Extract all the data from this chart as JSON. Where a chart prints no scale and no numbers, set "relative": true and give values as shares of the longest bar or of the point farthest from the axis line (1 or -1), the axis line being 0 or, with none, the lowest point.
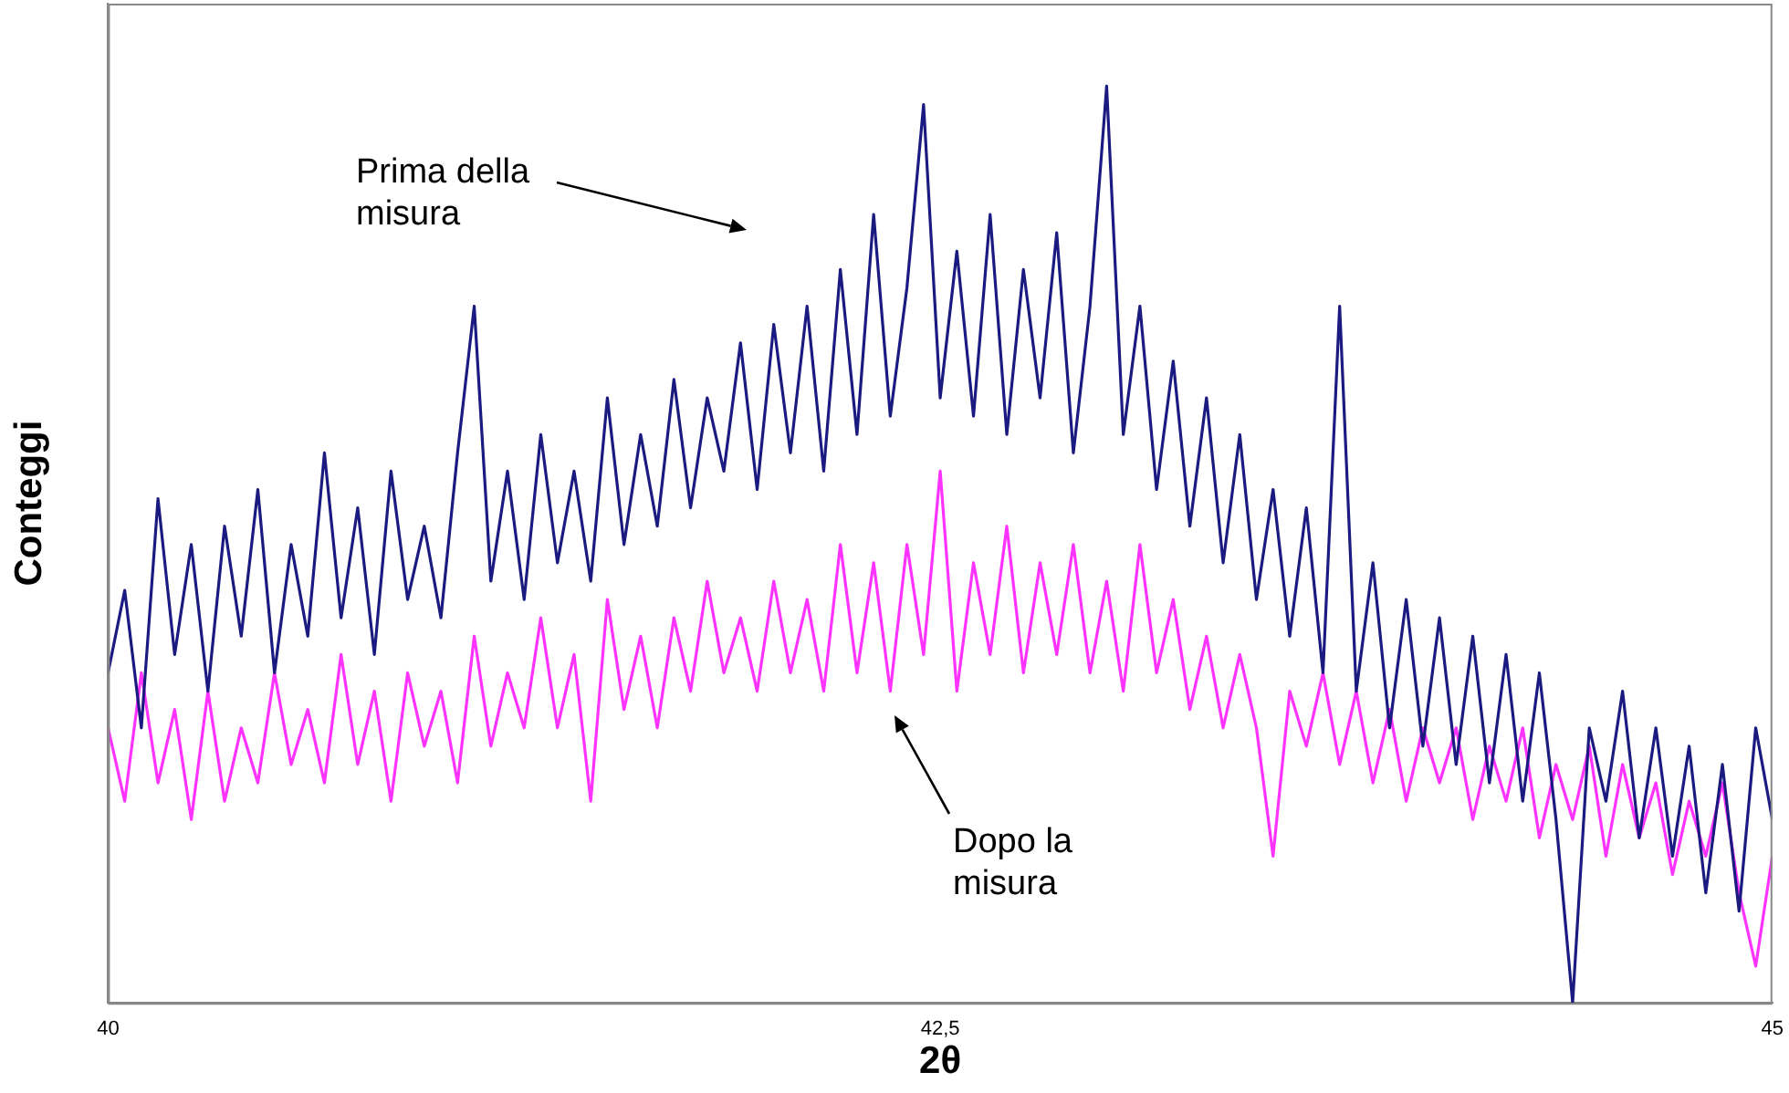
{
  "chart_data": {
    "type": "line",
    "relative": true,
    "xlabel": "2θ",
    "ylabel": "Conteggi",
    "xlim": [
      40,
      45
    ],
    "xticks": [
      40,
      {
        "value": 42.5,
        "label": "42,5"
      },
      45
    ],
    "grid": false,
    "legend": false,
    "marker": "none",
    "line_style": "solid",
    "annotations": [
      "Prima della misura",
      "Dopo la misura"
    ],
    "series": [
      {
        "color": "#1a1a80",
        "x": [
          40,
          40.05,
          40.1,
          40.15,
          40.2,
          40.25,
          40.3,
          40.35,
          40.4,
          40.45,
          40.5,
          40.55,
          40.6,
          40.65,
          40.7,
          40.75,
          40.8,
          40.85,
          40.9,
          40.95,
          41,
          41.05,
          41.1,
          41.15,
          41.2,
          41.25,
          41.3,
          41.35,
          41.4,
          41.45,
          41.5,
          41.55,
          41.6,
          41.65,
          41.7,
          41.75,
          41.8,
          41.85,
          41.9,
          41.95,
          42,
          42.05,
          42.1,
          42.15,
          42.2,
          42.25,
          42.3,
          42.35,
          42.4,
          42.45,
          42.5,
          42.55,
          42.6,
          42.65,
          42.7,
          42.75,
          42.8,
          42.85,
          42.9,
          42.95,
          43,
          43.05,
          43.1,
          43.15,
          43.2,
          43.25,
          43.3,
          43.35,
          43.4,
          43.45,
          43.5,
          43.55,
          43.6,
          43.65,
          43.7,
          43.75,
          43.8,
          43.85,
          43.9,
          43.95,
          44,
          44.05,
          44.1,
          44.15,
          44.2,
          44.25,
          44.3,
          44.35,
          44.4,
          44.45,
          44.5,
          44.55,
          44.6,
          44.65,
          44.7,
          44.75,
          44.8,
          44.85,
          44.9,
          44.95,
          45
        ],
        "values": [
          0.36,
          0.45,
          0.3,
          0.55,
          0.38,
          0.5,
          0.34,
          0.52,
          0.4,
          0.56,
          0.36,
          0.5,
          0.4,
          0.6,
          0.42,
          0.54,
          0.38,
          0.58,
          0.44,
          0.52,
          0.42,
          0.6,
          0.76,
          0.46,
          0.58,
          0.44,
          0.62,
          0.48,
          0.58,
          0.46,
          0.66,
          0.5,
          0.62,
          0.52,
          0.68,
          0.54,
          0.66,
          0.58,
          0.72,
          0.56,
          0.74,
          0.6,
          0.76,
          0.58,
          0.8,
          0.62,
          0.86,
          0.64,
          0.78,
          0.98,
          0.66,
          0.82,
          0.64,
          0.86,
          0.62,
          0.8,
          0.66,
          0.84,
          0.6,
          0.76,
          1.0,
          0.62,
          0.76,
          0.56,
          0.7,
          0.52,
          0.66,
          0.48,
          0.62,
          0.44,
          0.56,
          0.4,
          0.54,
          0.36,
          0.76,
          0.34,
          0.48,
          0.3,
          0.44,
          0.28,
          0.42,
          0.26,
          0.4,
          0.24,
          0.38,
          0.22,
          0.36,
          0.2,
          0.0,
          0.3,
          0.22,
          0.34,
          0.18,
          0.3,
          0.16,
          0.28,
          0.12,
          0.26,
          0.1,
          0.3,
          0.2
        ]
      },
      {
        "color": "#ff33ff",
        "x": [
          40,
          40.05,
          40.1,
          40.15,
          40.2,
          40.25,
          40.3,
          40.35,
          40.4,
          40.45,
          40.5,
          40.55,
          40.6,
          40.65,
          40.7,
          40.75,
          40.8,
          40.85,
          40.9,
          40.95,
          41,
          41.05,
          41.1,
          41.15,
          41.2,
          41.25,
          41.3,
          41.35,
          41.4,
          41.45,
          41.5,
          41.55,
          41.6,
          41.65,
          41.7,
          41.75,
          41.8,
          41.85,
          41.9,
          41.95,
          42,
          42.05,
          42.1,
          42.15,
          42.2,
          42.25,
          42.3,
          42.35,
          42.4,
          42.45,
          42.5,
          42.55,
          42.6,
          42.65,
          42.7,
          42.75,
          42.8,
          42.85,
          42.9,
          42.95,
          43,
          43.05,
          43.1,
          43.15,
          43.2,
          43.25,
          43.3,
          43.35,
          43.4,
          43.45,
          43.5,
          43.55,
          43.6,
          43.65,
          43.7,
          43.75,
          43.8,
          43.85,
          43.9,
          43.95,
          44,
          44.05,
          44.1,
          44.15,
          44.2,
          44.25,
          44.3,
          44.35,
          44.4,
          44.45,
          44.5,
          44.55,
          44.6,
          44.65,
          44.7,
          44.75,
          44.8,
          44.85,
          44.9,
          44.95,
          45
        ],
        "values": [
          0.3,
          0.22,
          0.36,
          0.24,
          0.32,
          0.2,
          0.34,
          0.22,
          0.3,
          0.24,
          0.36,
          0.26,
          0.32,
          0.24,
          0.38,
          0.26,
          0.34,
          0.22,
          0.36,
          0.28,
          0.34,
          0.24,
          0.4,
          0.28,
          0.36,
          0.3,
          0.42,
          0.3,
          0.38,
          0.22,
          0.44,
          0.32,
          0.4,
          0.3,
          0.42,
          0.34,
          0.46,
          0.36,
          0.42,
          0.34,
          0.46,
          0.36,
          0.44,
          0.34,
          0.5,
          0.36,
          0.48,
          0.34,
          0.5,
          0.38,
          0.58,
          0.34,
          0.48,
          0.38,
          0.52,
          0.36,
          0.48,
          0.38,
          0.5,
          0.36,
          0.46,
          0.34,
          0.5,
          0.36,
          0.44,
          0.32,
          0.4,
          0.3,
          0.38,
          0.3,
          0.16,
          0.34,
          0.28,
          0.36,
          0.26,
          0.34,
          0.24,
          0.32,
          0.22,
          0.3,
          0.24,
          0.3,
          0.2,
          0.28,
          0.22,
          0.3,
          0.18,
          0.26,
          0.2,
          0.28,
          0.16,
          0.26,
          0.18,
          0.24,
          0.14,
          0.22,
          0.16,
          0.24,
          0.12,
          0.04,
          0.16
        ]
      }
    ]
  }
}
